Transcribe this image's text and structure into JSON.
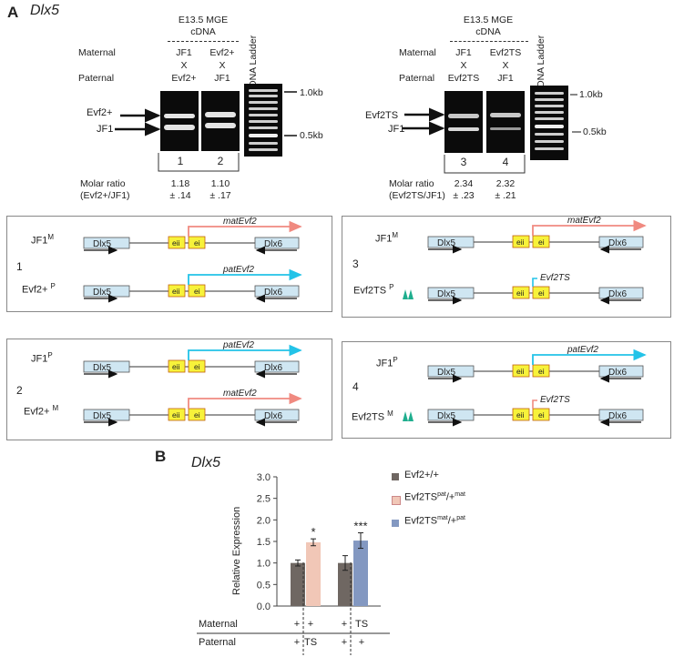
{
  "panel_a": {
    "letter": "A",
    "gene": "Dlx5",
    "left_gel": {
      "header_line1": "E13.5 MGE",
      "header_line2": "cDNA",
      "maternal_label": "Maternal",
      "paternal_label": "Paternal",
      "lanes": [
        {
          "maternal": "JF1",
          "x": "X",
          "paternal": "Evf2+",
          "number": "1",
          "ratio": "1.18",
          "err": "± .14"
        },
        {
          "maternal": "Evf2+",
          "x": "X",
          "paternal": "JF1",
          "number": "2",
          "ratio": "1.10",
          "err": "± .17"
        }
      ],
      "ladder_label": "DNA Ladder",
      "size_top": "1.0kb",
      "size_bottom": "0.5kb",
      "band_upper": "Evf2+",
      "band_lower": "JF1",
      "ratio_label1": "Molar ratio",
      "ratio_label2": "(Evf2+/JF1)"
    },
    "right_gel": {
      "header_line1": "E13.5 MGE",
      "header_line2": "cDNA",
      "maternal_label": "Maternal",
      "paternal_label": "Paternal",
      "lanes": [
        {
          "maternal": "JF1",
          "x": "X",
          "paternal": "Evf2TS",
          "number": "3",
          "ratio": "2.34",
          "err": "± .23"
        },
        {
          "maternal": "Evf2TS",
          "x": "X",
          "paternal": "JF1",
          "number": "4",
          "ratio": "2.32",
          "err": "± .21"
        }
      ],
      "ladder_label": "DNA Ladder",
      "size_top": "1.0kb",
      "size_bottom": "0.5kb",
      "band_upper": "Evf2TS",
      "band_lower": "JF1",
      "ratio_label1": "Molar ratio",
      "ratio_label2": "(Evf2TS/JF1)"
    },
    "diagrams": {
      "gene_left": "Dlx5",
      "gene_right": "Dlx6",
      "exon_a": "eii",
      "exon_b": "ei",
      "colors": {
        "maternal": "#f08a80",
        "paternal": "#23c3e8",
        "gene_box": "#cfe6f2",
        "exon_box": "#f7f23a",
        "ts_marker": "#1fae8e"
      },
      "boxes": [
        {
          "number": "1",
          "top_allele": "JF1",
          "top_sup": "M",
          "top_transcript": "matEvf2",
          "bottom_allele": "Evf2+",
          "bottom_sup": "P",
          "bottom_transcript": "patEvf2"
        },
        {
          "number": "3",
          "top_allele": "JF1",
          "top_sup": "M",
          "top_transcript": "matEvf2",
          "bottom_allele": "Evf2TS",
          "bottom_sup": "P",
          "bottom_transcript": "Evf2TS"
        },
        {
          "number": "2",
          "top_allele": "JF1",
          "top_sup": "P",
          "top_transcript": "patEvf2",
          "bottom_allele": "Evf2+",
          "bottom_sup": "M",
          "bottom_transcript": "matEvf2"
        },
        {
          "number": "4",
          "top_allele": "JF1",
          "top_sup": "P",
          "top_transcript": "patEvf2",
          "bottom_allele": "Evf2TS",
          "bottom_sup": "M",
          "bottom_transcript": "Evf2TS"
        }
      ]
    }
  },
  "panel_b": {
    "letter": "B",
    "gene": "Dlx5",
    "chart_data": {
      "type": "bar",
      "ylabel": "Relative Expression",
      "ylim": [
        0,
        3.0
      ],
      "yticks": [
        "0.0",
        "0.5",
        "1.0",
        "1.5",
        "2.0",
        "2.5",
        "3.0"
      ],
      "groups": [
        {
          "bars": [
            {
              "series": 0,
              "value": 1.0,
              "error": 0.07
            },
            {
              "series": 1,
              "value": 1.48,
              "error": 0.08,
              "significance": "*"
            }
          ]
        },
        {
          "bars": [
            {
              "series": 0,
              "value": 1.0,
              "error": 0.17
            },
            {
              "series": 2,
              "value": 1.52,
              "error": 0.18,
              "significance": "***"
            }
          ]
        }
      ],
      "series": [
        {
          "label": "Evf2+/+",
          "sup": "",
          "sup2": "",
          "color": "#6f6762"
        },
        {
          "label": "Evf2TS",
          "sup": "pat",
          "mid": "/+",
          "sup2": "mat",
          "color": "#f1c7b7"
        },
        {
          "label": "Evf2TS",
          "sup": "mat",
          "mid": "/+",
          "sup2": "pat",
          "color": "#8398c1"
        }
      ],
      "genotype_rows": [
        {
          "label": "Maternal",
          "values": [
            "+",
            "+",
            "+",
            "TS"
          ]
        },
        {
          "label": "Paternal",
          "values": [
            "+",
            "TS",
            "+",
            "+"
          ]
        }
      ]
    }
  }
}
